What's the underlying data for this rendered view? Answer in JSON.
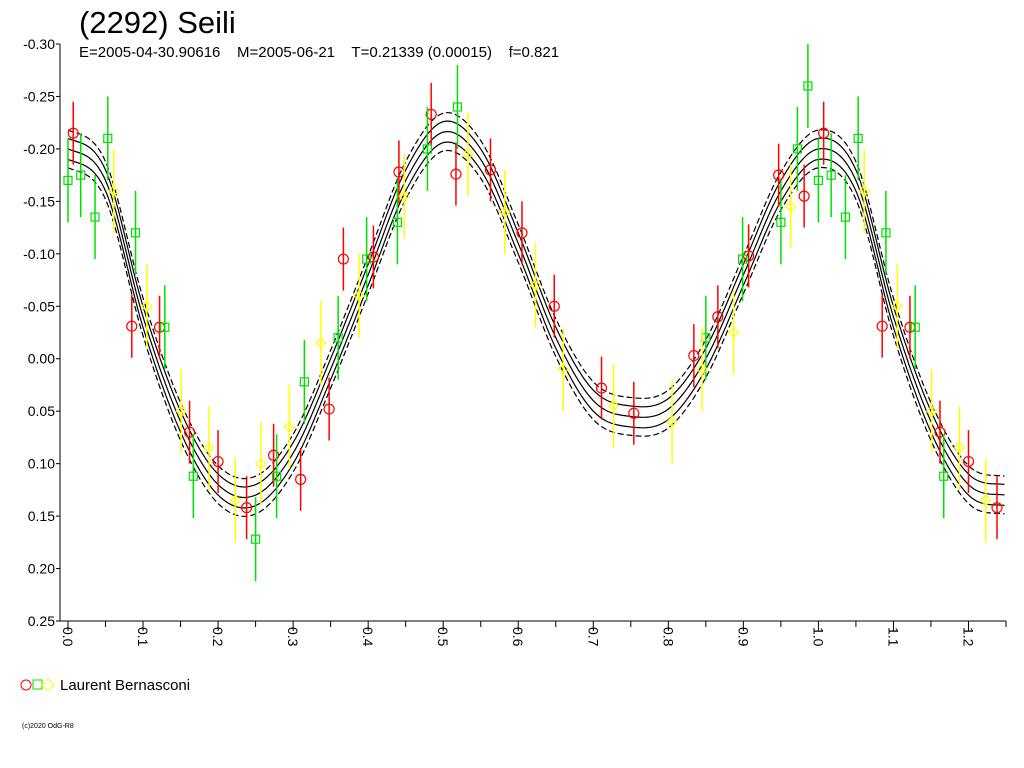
{
  "chart_data": {
    "type": "scatter",
    "title": "(2292) Seili",
    "subtitle": "E=2005-04-30.90616    M=2005-06-21    T=0.21339 (0.00015)    f=0.821",
    "xlabel": "",
    "ylabel": "",
    "xlim": [
      0.0,
      1.25
    ],
    "ylim": [
      -0.3,
      0.25
    ],
    "y_inverted": true,
    "x_ticks": [
      "0.0",
      "0.1",
      "0.2",
      "0.3",
      "0.4",
      "0.5",
      "0.6",
      "0.7",
      "0.8",
      "0.9",
      "1.0",
      "1.1",
      "1.2"
    ],
    "y_ticks": [
      "-0.30",
      "-0.25",
      "-0.20",
      "-0.15",
      "-0.10",
      "-0.05",
      "0.00",
      "0.05",
      "0.10",
      "0.15",
      "0.20",
      "0.25"
    ],
    "grid": false,
    "legend": {
      "placement": "bottom-left",
      "label": "Laurent Bernasconi",
      "markers": [
        "circle",
        "square",
        "diamond"
      ]
    },
    "copyright": "(c)2020 OdG-R8",
    "fit_curve": {
      "x": [
        0.0,
        0.05,
        0.1,
        0.15,
        0.2,
        0.25,
        0.3,
        0.35,
        0.4,
        0.45,
        0.5,
        0.55,
        0.6,
        0.65,
        0.7,
        0.75,
        0.8,
        0.85,
        0.9,
        0.95,
        1.0,
        1.05,
        1.1,
        1.15,
        1.2,
        1.25
      ],
      "y": [
        -0.2,
        -0.17,
        -0.04,
        0.06,
        0.12,
        0.13,
        0.09,
        0.01,
        -0.08,
        -0.17,
        -0.216,
        -0.19,
        -0.11,
        -0.02,
        0.04,
        0.055,
        0.048,
        0.0,
        -0.08,
        -0.16,
        -0.2,
        -0.17,
        -0.04,
        0.06,
        0.12,
        0.13
      ],
      "band_inner": 0.01,
      "band_outer": 0.018
    },
    "series": [
      {
        "name": "",
        "marker": "circle",
        "color": "#ff0000",
        "x": [
          0.007,
          0.085,
          0.122,
          0.162,
          0.2,
          0.238,
          0.274,
          0.31,
          0.348,
          0.367,
          0.407,
          0.441,
          0.484,
          0.517,
          0.563,
          0.605,
          0.648,
          0.711,
          0.754,
          0.834,
          0.866,
          0.907,
          0.947,
          0.981,
          1.007,
          1.085,
          1.122,
          1.162,
          1.2,
          1.238
        ],
        "y": [
          -0.215,
          -0.031,
          -0.03,
          0.07,
          0.098,
          0.142,
          0.092,
          0.115,
          0.048,
          -0.095,
          -0.097,
          -0.178,
          -0.233,
          -0.176,
          -0.18,
          -0.12,
          -0.05,
          0.028,
          0.052,
          -0.003,
          -0.04,
          -0.098,
          -0.175,
          -0.155,
          -0.215,
          -0.031,
          -0.03,
          0.07,
          0.098,
          0.142
        ],
        "err": [
          0.03,
          0.03,
          0.03,
          0.03,
          0.03,
          0.03,
          0.03,
          0.03,
          0.03,
          0.03,
          0.03,
          0.03,
          0.03,
          0.03,
          0.03,
          0.03,
          0.03,
          0.03,
          0.03,
          0.03,
          0.03,
          0.03,
          0.03,
          0.03,
          0.03,
          0.03,
          0.03,
          0.03,
          0.03,
          0.03
        ]
      },
      {
        "name": "",
        "marker": "square",
        "color": "#00e000",
        "x": [
          0.0,
          0.017,
          0.036,
          0.053,
          0.09,
          0.129,
          0.167,
          0.25,
          0.278,
          0.315,
          0.36,
          0.398,
          0.439,
          0.479,
          0.519,
          0.85,
          0.899,
          0.95,
          0.972,
          0.986,
          1.0,
          1.017,
          1.036,
          1.053,
          1.09,
          1.129,
          1.167
        ],
        "y": [
          -0.17,
          -0.175,
          -0.135,
          -0.21,
          -0.12,
          -0.03,
          0.112,
          0.172,
          0.112,
          0.022,
          -0.02,
          -0.095,
          -0.13,
          -0.2,
          -0.24,
          -0.02,
          -0.095,
          -0.13,
          -0.2,
          -0.26,
          -0.17,
          -0.175,
          -0.135,
          -0.21,
          -0.12,
          -0.03,
          0.112
        ],
        "err": [
          0.04,
          0.04,
          0.04,
          0.04,
          0.04,
          0.04,
          0.04,
          0.04,
          0.04,
          0.04,
          0.04,
          0.04,
          0.04,
          0.04,
          0.04,
          0.04,
          0.04,
          0.04,
          0.04,
          0.04,
          0.04,
          0.04,
          0.04,
          0.04,
          0.04,
          0.04,
          0.04
        ]
      },
      {
        "name": "",
        "marker": "diamond",
        "color": "#ffff00",
        "x": [
          0.061,
          0.105,
          0.151,
          0.188,
          0.223,
          0.257,
          0.295,
          0.337,
          0.388,
          0.448,
          0.533,
          0.582,
          0.623,
          0.66,
          0.727,
          0.805,
          0.845,
          0.887,
          0.963,
          1.061,
          1.105,
          1.151,
          1.188,
          1.223
        ],
        "y": [
          -0.16,
          -0.05,
          0.05,
          0.085,
          0.135,
          0.1,
          0.065,
          -0.015,
          -0.06,
          -0.155,
          -0.195,
          -0.14,
          -0.07,
          0.01,
          0.045,
          0.06,
          0.01,
          -0.025,
          -0.145,
          -0.16,
          -0.05,
          0.05,
          0.085,
          0.135
        ],
        "err": [
          0.04,
          0.04,
          0.04,
          0.04,
          0.04,
          0.04,
          0.04,
          0.04,
          0.04,
          0.04,
          0.04,
          0.04,
          0.04,
          0.04,
          0.04,
          0.04,
          0.04,
          0.04,
          0.04,
          0.04,
          0.04,
          0.04,
          0.04,
          0.04
        ]
      }
    ]
  }
}
